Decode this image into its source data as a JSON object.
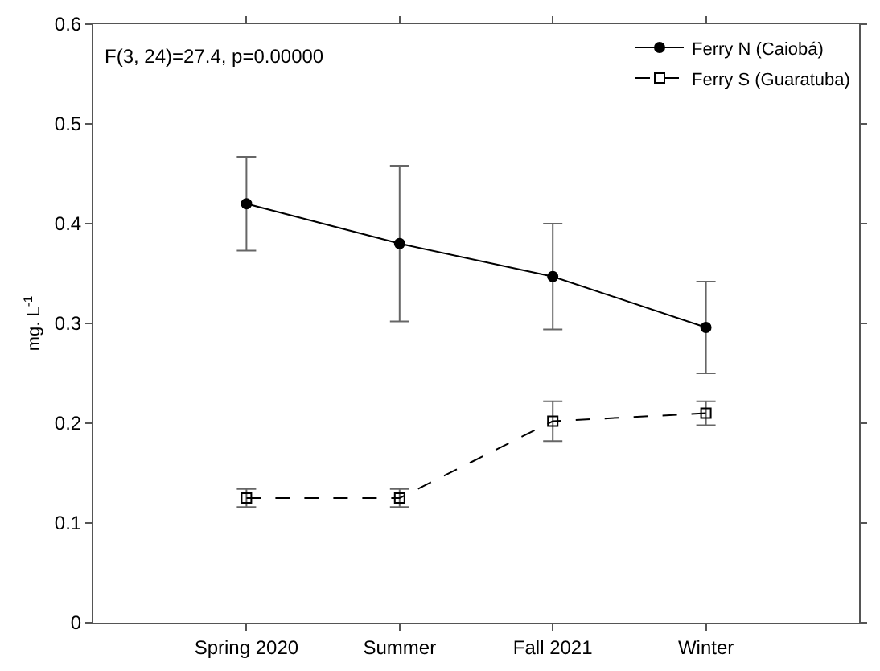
{
  "chart_data": {
    "type": "line",
    "categories": [
      "Spring 2020",
      "Summer",
      "Fall 2021",
      "Winter"
    ],
    "ylabel": "mg. L$^{-1}$",
    "ylim": [
      0,
      0.6
    ],
    "yticks": [
      0,
      0.1,
      0.2,
      0.3,
      0.4,
      0.5,
      0.6
    ],
    "annotations": [
      "F(3, 24)=27.4, p=0.00000"
    ],
    "legend": "top right",
    "series": [
      {
        "name": "Ferry N (Caiobá)",
        "color": "#000000",
        "marker": "circle",
        "line_style": "solid",
        "values": [
          0.42,
          0.38,
          0.347,
          0.296
        ],
        "errors": [
          0.047,
          0.078,
          0.053,
          0.046
        ]
      },
      {
        "name": "Ferry S (Guaratuba)",
        "color": "#000000",
        "marker": "square",
        "line_style": "dashed",
        "values": [
          0.125,
          0.125,
          0.202,
          0.21
        ],
        "errors": [
          0.009,
          0.009,
          0.02,
          0.012
        ]
      }
    ]
  }
}
